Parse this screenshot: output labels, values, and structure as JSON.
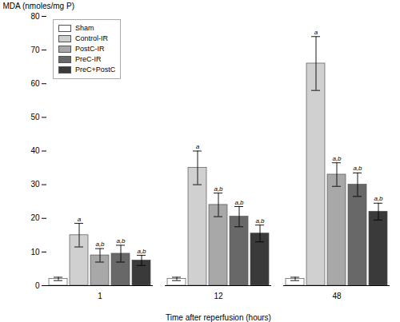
{
  "chart_data": {
    "type": "bar",
    "categories": [
      "1",
      "12",
      "48"
    ],
    "series": [
      {
        "name": "Sham",
        "color": "#ffffff",
        "values": [
          2.0,
          2.0,
          2.0
        ],
        "errors": [
          0.5,
          0.5,
          0.5
        ],
        "annotations": [
          null,
          null,
          null
        ]
      },
      {
        "name": "Control-IR",
        "color": "#d0d0d0",
        "values": [
          15.0,
          35.0,
          66.0
        ],
        "errors": [
          3.5,
          5.0,
          8.0
        ],
        "annotations": [
          "a",
          "a",
          "a"
        ]
      },
      {
        "name": "PostC-IR",
        "color": "#a8a8a8",
        "values": [
          9.0,
          24.0,
          33.0
        ],
        "errors": [
          2.0,
          3.5,
          3.5
        ],
        "annotations": [
          "a,b",
          "a,b",
          "a,b"
        ]
      },
      {
        "name": "PreC-IR",
        "color": "#686868",
        "values": [
          9.5,
          20.5,
          30.0
        ],
        "errors": [
          2.5,
          3.0,
          3.5
        ],
        "annotations": [
          "a,b",
          "a,b",
          "a,b"
        ]
      },
      {
        "name": "PreC+PostC",
        "color": "#3a3a3a",
        "values": [
          7.5,
          15.5,
          22.0
        ],
        "errors": [
          1.5,
          2.5,
          2.5
        ],
        "annotations": [
          "a,b",
          "a,b",
          "a,b"
        ]
      }
    ],
    "xlabel": "Time after reperfusion (hours)",
    "ylabel": "MDA (nmoles/mg P)",
    "ylim": [
      0,
      80
    ],
    "yticks": [
      0,
      10,
      20,
      30,
      40,
      50,
      60,
      70,
      80
    ],
    "grid": false,
    "legend": "upper left"
  }
}
